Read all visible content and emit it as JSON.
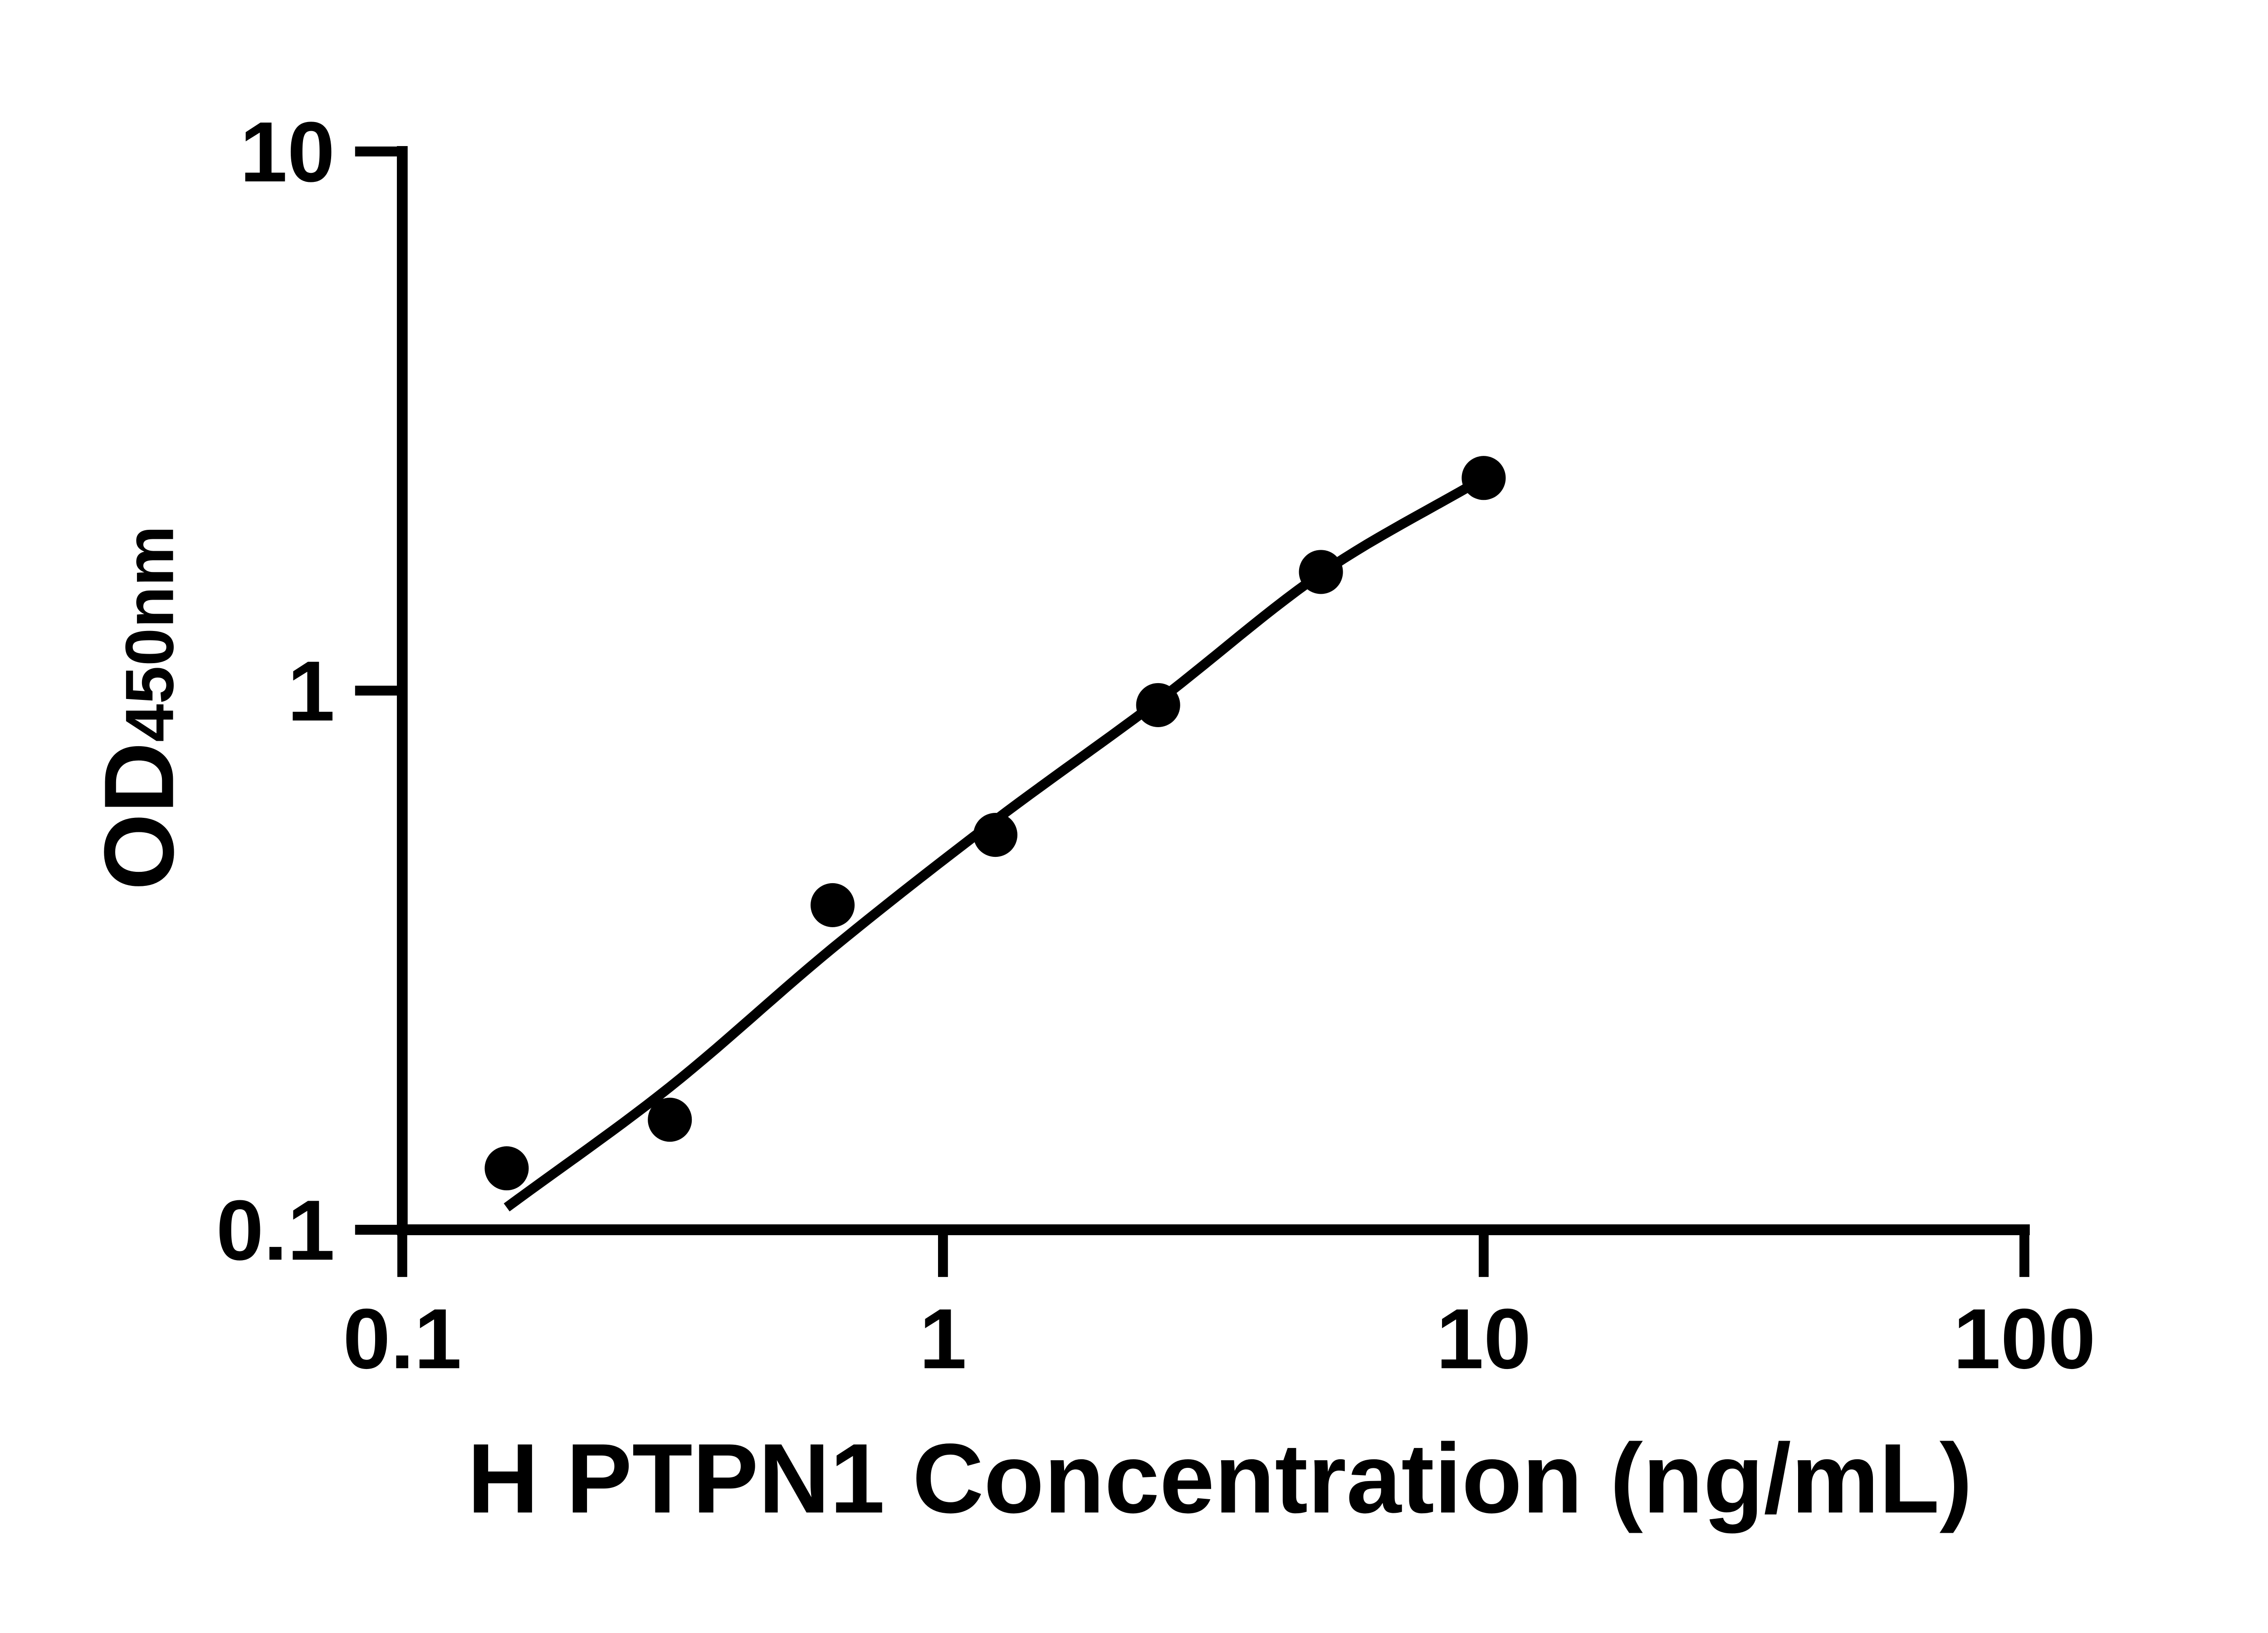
{
  "figure": {
    "background_color": "#ffffff",
    "foreground_color": "#000000"
  },
  "chart_data": {
    "type": "scatter",
    "subtype": "elisa-standard-curve-with-fit",
    "title": "",
    "xlabel": "H PTPN1 Concentration (ng/mL)",
    "ylabel_main": "OD",
    "ylabel_sub": "450nm",
    "x_scale": "log",
    "y_scale": "log",
    "xlim": [
      0.1,
      100
    ],
    "ylim": [
      0.1,
      10
    ],
    "x_ticks": [
      0.1,
      1,
      10,
      100
    ],
    "x_tick_labels": [
      "0.1",
      "1",
      "10",
      "100"
    ],
    "y_ticks": [
      0.1,
      1,
      10
    ],
    "y_tick_labels": [
      "0.1",
      "1",
      "10"
    ],
    "grid": false,
    "legend": null,
    "series": [
      {
        "name": "standard-curve-points",
        "marker": "circle",
        "color": "#000000",
        "points": [
          {
            "x": 0.156,
            "y": 0.13
          },
          {
            "x": 0.3125,
            "y": 0.16
          },
          {
            "x": 0.625,
            "y": 0.4
          },
          {
            "x": 1.25,
            "y": 0.54
          },
          {
            "x": 2.5,
            "y": 0.94
          },
          {
            "x": 5,
            "y": 1.66
          },
          {
            "x": 10,
            "y": 2.48
          }
        ]
      }
    ],
    "fit_curve": {
      "name": "four-parameter-logistic-fit",
      "color": "#000000",
      "x": [
        0.156,
        0.3125,
        0.625,
        1.25,
        2.5,
        5,
        10
      ],
      "y": [
        0.11,
        0.184,
        0.333,
        0.575,
        0.957,
        1.648,
        2.478
      ]
    }
  }
}
